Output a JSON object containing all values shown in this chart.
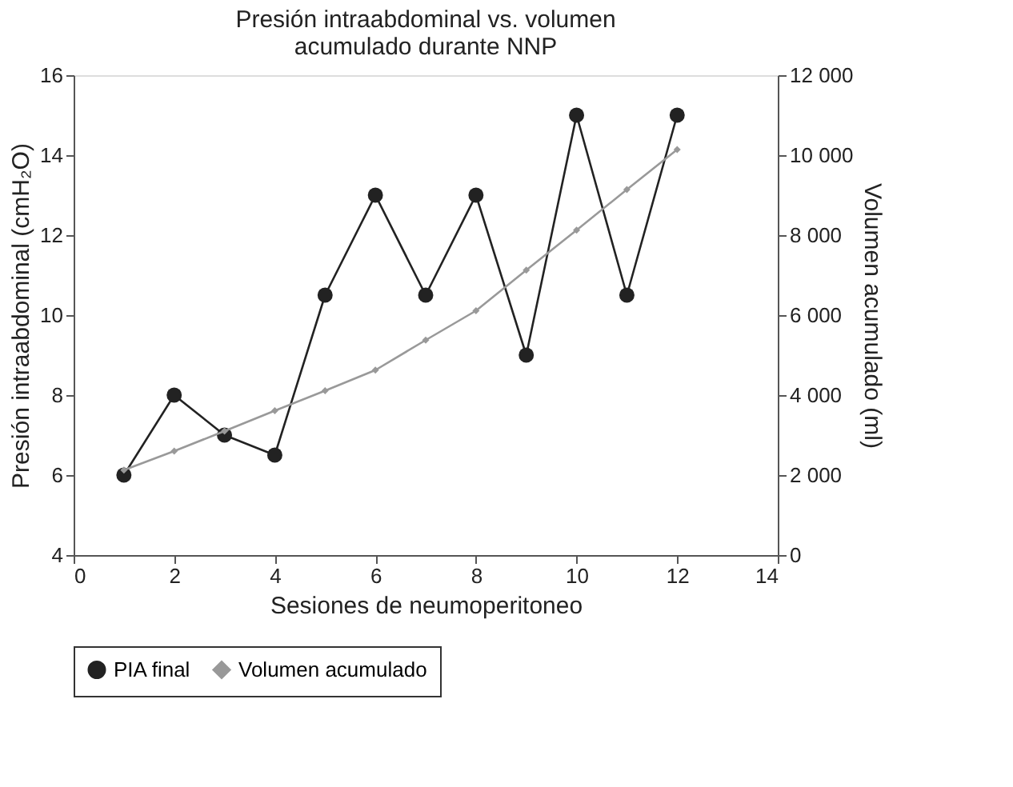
{
  "chart_data": {
    "type": "line",
    "title": "Presión intraabdominal vs. volumen acumulado durante NNP",
    "xlabel": "Sesiones de neumoperitoneo",
    "ylabel": "Presión intraabdominal (cmH₂O)",
    "y2label": "Volumen acumulado (ml)",
    "x": [
      1,
      2,
      3,
      4,
      5,
      6,
      7,
      8,
      9,
      10,
      11,
      12
    ],
    "series": [
      {
        "name": "PIA final",
        "color": "#222222",
        "marker": "circle",
        "values": [
          6,
          8,
          7,
          6.5,
          10.5,
          13,
          10.5,
          13,
          9,
          15,
          10.5,
          15
        ]
      },
      {
        "name": "Volumen acumulado",
        "color": "#999999",
        "marker": "diamond",
        "axis": "y2",
        "values": [
          2125,
          2600,
          3100,
          3610,
          4110,
          4625,
          5375,
          6110,
          7125,
          8125,
          9140,
          10140
        ]
      }
    ],
    "xlim": [
      0,
      14
    ],
    "xticks": [
      0,
      2,
      4,
      6,
      8,
      10,
      12,
      14
    ],
    "ylim": [
      4,
      16
    ],
    "yticks": [
      4,
      6,
      8,
      10,
      12,
      14,
      16
    ],
    "y2lim": [
      0,
      12000
    ],
    "y2ticks": [
      0,
      {
        "value": 2000,
        "label": "2 000"
      },
      {
        "value": 4000,
        "label": "4 000"
      },
      {
        "value": 6000,
        "label": "6 000"
      },
      {
        "value": 8000,
        "label": "8 000"
      },
      {
        "value": 10000,
        "label": "10 000"
      },
      {
        "value": 12000,
        "label": "12 000"
      }
    ],
    "grid": false,
    "legend": "bottom",
    "line_style": "solid"
  }
}
